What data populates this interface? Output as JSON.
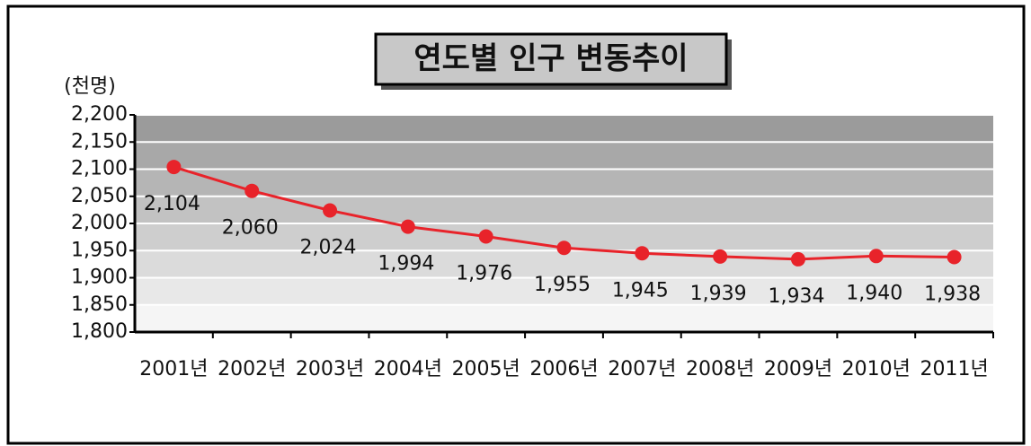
{
  "chart_data": {
    "type": "line",
    "title": "연도별 인구 변동추이",
    "y_axis_label": "(천명)",
    "categories": [
      "2001년",
      "2002년",
      "2003년",
      "2004년",
      "2005년",
      "2006년",
      "2007년",
      "2008년",
      "2009년",
      "2010년",
      "2011년"
    ],
    "series": [
      {
        "color": "#e8232a",
        "values": [
          2104,
          2060,
          2024,
          1994,
          1976,
          1955,
          1945,
          1939,
          1934,
          1940,
          1938
        ],
        "value_labels": [
          "2,104",
          "2,060",
          "2,024",
          "1,994",
          "1,976",
          "1,955",
          "1,945",
          "1,939",
          "1,934",
          "1,940",
          "1,938"
        ]
      }
    ],
    "ylim": [
      1800,
      2200
    ],
    "yticks": [
      {
        "value": 1800,
        "label": "1,800"
      },
      {
        "value": 1850,
        "label": "1,850"
      },
      {
        "value": 1900,
        "label": "1,900"
      },
      {
        "value": 1950,
        "label": "1,950"
      },
      {
        "value": 2000,
        "label": "2,000"
      },
      {
        "value": 2050,
        "label": "2,050"
      },
      {
        "value": 2100,
        "label": "2,100"
      },
      {
        "value": 2150,
        "label": "2,150"
      },
      {
        "value": 2200,
        "label": "2,200"
      }
    ],
    "grid": true
  }
}
